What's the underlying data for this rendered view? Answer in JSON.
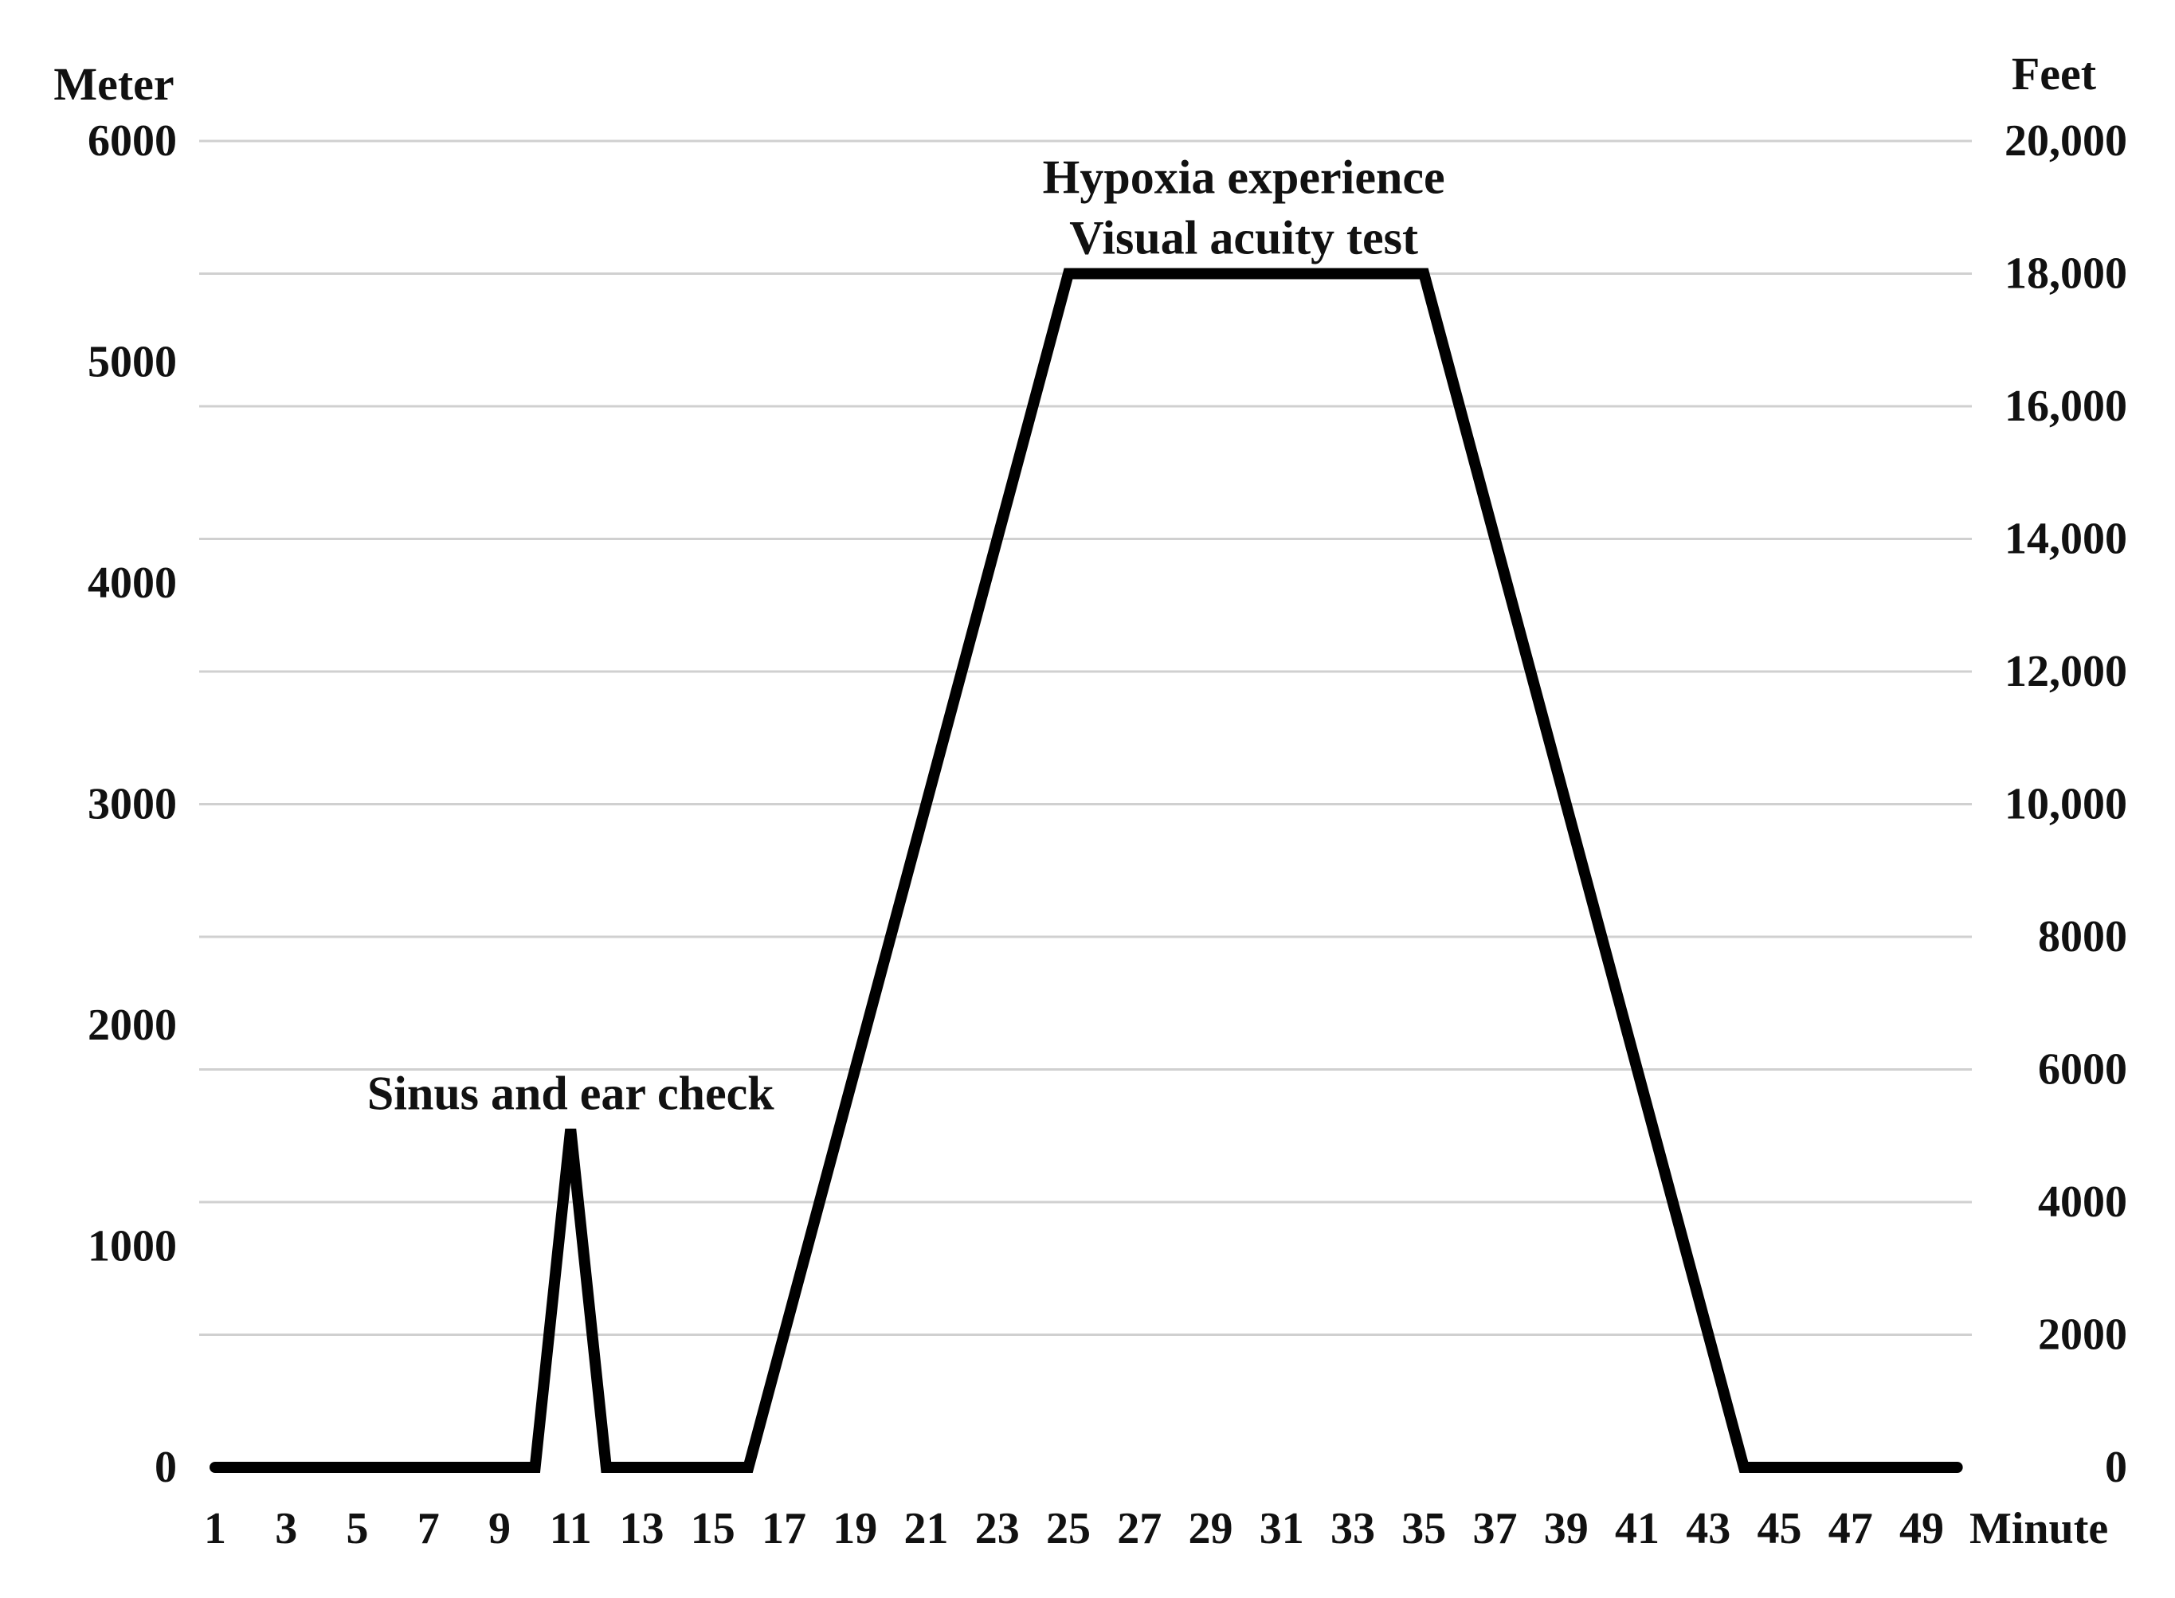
{
  "chart_data": {
    "type": "line",
    "title": "",
    "y_left_label": "Meter",
    "y_right_label": "Feet",
    "x_unit_label": "Minute",
    "y_left_ticks": [
      "0",
      "1000",
      "2000",
      "3000",
      "4000",
      "5000",
      "6000"
    ],
    "y_left_tick_values": [
      0,
      1000,
      2000,
      3000,
      4000,
      5000,
      6000
    ],
    "y_right_ticks": [
      "0",
      "2000",
      "4000",
      "6000",
      "8000",
      "10,000",
      "12,000",
      "14,000",
      "16,000",
      "18,000",
      "20,000"
    ],
    "y_right_tick_values": [
      0,
      2000,
      4000,
      6000,
      8000,
      10000,
      12000,
      14000,
      16000,
      18000,
      20000
    ],
    "ylim_meter": [
      0,
      6000
    ],
    "ylim_feet": [
      0,
      20000
    ],
    "x_ticks": [
      "1",
      "3",
      "5",
      "7",
      "9",
      "11",
      "13",
      "15",
      "17",
      "19",
      "21",
      "23",
      "25",
      "27",
      "29",
      "31",
      "33",
      "35",
      "37",
      "39",
      "41",
      "43",
      "45",
      "47",
      "49"
    ],
    "x_tick_values": [
      1,
      3,
      5,
      7,
      9,
      11,
      13,
      15,
      17,
      19,
      21,
      23,
      25,
      27,
      29,
      31,
      33,
      35,
      37,
      39,
      41,
      43,
      45,
      47,
      49
    ],
    "xlim": [
      1,
      50
    ],
    "grid": "horizontal",
    "series": [
      {
        "points_feet": [
          [
            1,
            0
          ],
          [
            10,
            0
          ],
          [
            11,
            5100
          ],
          [
            12,
            0
          ],
          [
            16,
            0
          ],
          [
            25,
            18000
          ],
          [
            35,
            18000
          ],
          [
            44,
            0
          ],
          [
            50,
            0
          ]
        ],
        "color": "#000000"
      }
    ],
    "annotations": [
      {
        "lines": [
          "Hypoxia experience",
          "Visual acuity test"
        ],
        "anchor_x": 30,
        "anchor_feet": 18000
      },
      {
        "lines": [
          "Sinus and ear check"
        ],
        "anchor_x": 11,
        "anchor_feet": 5100
      }
    ]
  }
}
